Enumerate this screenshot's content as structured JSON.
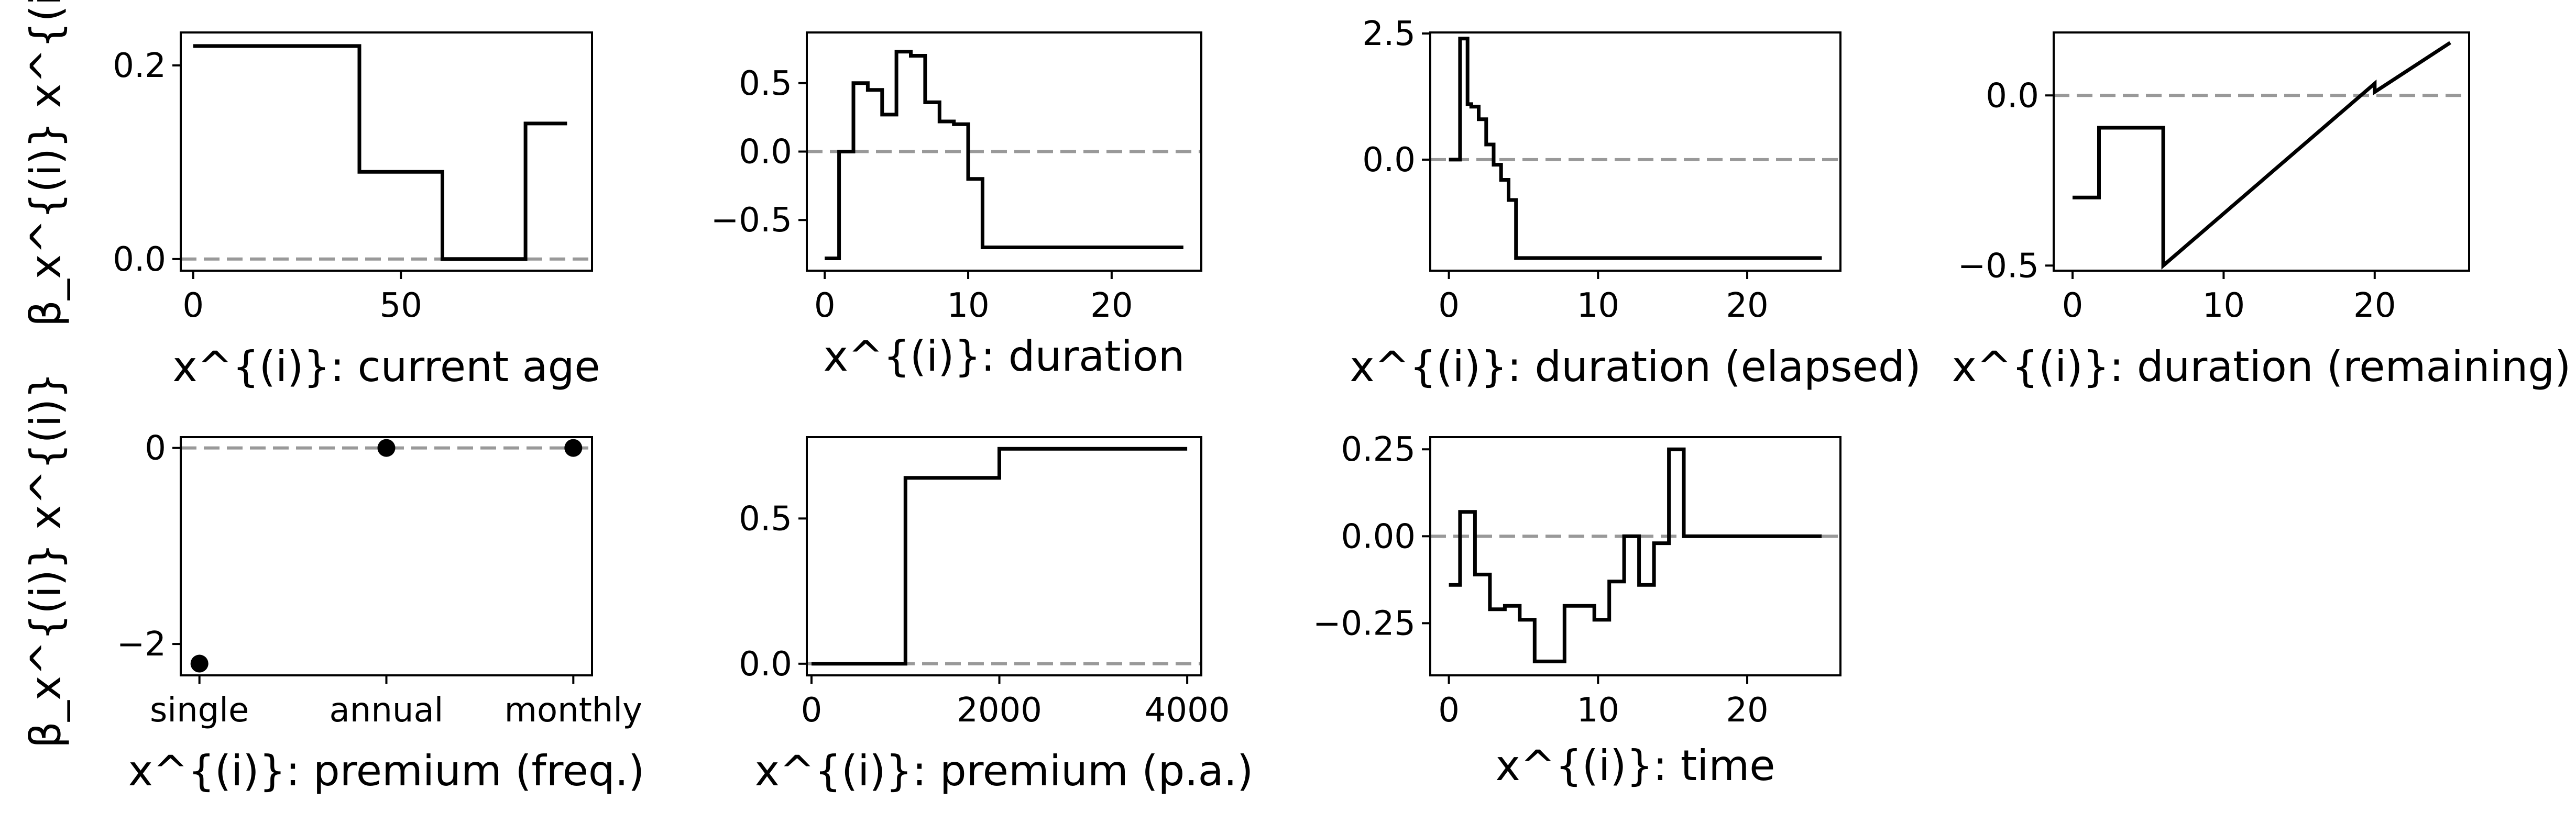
{
  "ylabel_text": "β_x^{(i)} x^{(i)}",
  "chart_data": [
    {
      "type": "line",
      "step": true,
      "xlabel": "x^{(i)}: current age",
      "ylabel": "β_x^{(i)} x^{(i)}",
      "xlim": [
        -3,
        96
      ],
      "ylim": [
        -0.012,
        0.234
      ],
      "xticks": [
        0,
        50
      ],
      "xtick_labels": [
        "0",
        "50"
      ],
      "yticks": [
        0.0,
        0.2
      ],
      "ytick_labels": [
        "0.0",
        "0.2"
      ],
      "reference_line": 0,
      "x": [
        0,
        40,
        40,
        60,
        60,
        80,
        80,
        90
      ],
      "y": [
        0.22,
        0.22,
        0.09,
        0.09,
        0.0,
        0.0,
        0.14,
        0.14
      ]
    },
    {
      "type": "line",
      "step": true,
      "xlabel": "x^{(i)}: duration",
      "ylabel": "",
      "xlim": [
        -1.25,
        26.25
      ],
      "ylim": [
        -0.87,
        0.87
      ],
      "xticks": [
        0,
        10,
        20
      ],
      "xtick_labels": [
        "0",
        "10",
        "20"
      ],
      "yticks": [
        -0.5,
        0.0,
        0.5
      ],
      "ytick_labels": [
        "−0.5",
        "0.0",
        "0.5"
      ],
      "reference_line": 0,
      "x": [
        0,
        1,
        1,
        2,
        2,
        3,
        3,
        4,
        4,
        5,
        5,
        6,
        6,
        7,
        7,
        8,
        8,
        9,
        9,
        10,
        10,
        11,
        11,
        25
      ],
      "y": [
        -0.78,
        -0.78,
        0.0,
        0.0,
        0.5,
        0.5,
        0.45,
        0.45,
        0.27,
        0.27,
        0.73,
        0.73,
        0.7,
        0.7,
        0.36,
        0.36,
        0.22,
        0.22,
        0.2,
        0.2,
        -0.2,
        -0.2,
        -0.7,
        -0.7
      ]
    },
    {
      "type": "line",
      "step": true,
      "xlabel": "x^{(i)}: duration (elapsed)",
      "ylabel": "",
      "xlim": [
        -1.25,
        26.25
      ],
      "ylim": [
        -2.2,
        2.52
      ],
      "xticks": [
        0,
        10,
        20
      ],
      "xtick_labels": [
        "0",
        "10",
        "20"
      ],
      "yticks": [
        0.0,
        2.5
      ],
      "ytick_labels": [
        "0.0",
        "2.5"
      ],
      "reference_line": 0,
      "x": [
        0,
        0.75,
        0.75,
        1.25,
        1.25,
        1.5,
        1.5,
        2.0,
        2.0,
        2.5,
        2.5,
        3.0,
        3.0,
        3.5,
        3.5,
        4.0,
        4.0,
        4.5,
        4.5,
        25
      ],
      "y": [
        0.0,
        0.0,
        2.4,
        2.4,
        1.1,
        1.1,
        1.05,
        1.05,
        0.8,
        0.8,
        0.3,
        0.3,
        -0.1,
        -0.1,
        -0.4,
        -0.4,
        -0.8,
        -0.8,
        -1.95,
        -1.95
      ]
    },
    {
      "type": "line",
      "step": false,
      "xlabel": "x^{(i)}: duration (remaining)",
      "ylabel": "",
      "xlim": [
        -1.25,
        26.25
      ],
      "ylim": [
        -0.515,
        0.185
      ],
      "xticks": [
        0,
        10,
        20
      ],
      "xtick_labels": [
        "0",
        "10",
        "20"
      ],
      "yticks": [
        -0.5,
        0.0
      ],
      "ytick_labels": [
        "−0.5",
        "0.0"
      ],
      "reference_line": 0,
      "x": [
        0,
        1.75,
        1.75,
        6,
        6,
        20,
        20,
        25
      ],
      "y": [
        -0.3,
        -0.3,
        -0.095,
        -0.095,
        -0.5,
        0.035,
        0.01,
        0.155
      ]
    },
    {
      "type": "scatter",
      "xlabel": "x^{(i)}: premium (freq.)",
      "ylabel": "β_x^{(i)} x^{(i)}",
      "xlim": [
        -0.1,
        2.1
      ],
      "ylim": [
        -2.32,
        0.11
      ],
      "categories": [
        "single",
        "annual",
        "monthly"
      ],
      "xticks": [
        0,
        1,
        2
      ],
      "xtick_labels": [
        "single",
        "annual",
        "monthly"
      ],
      "yticks": [
        -2,
        0
      ],
      "ytick_labels": [
        "−2",
        "0"
      ],
      "reference_line": 0,
      "x": [
        0,
        1,
        2
      ],
      "y": [
        -2.2,
        0.0,
        0.0
      ]
    },
    {
      "type": "line",
      "step": true,
      "xlabel": "x^{(i)}: premium (p.a.)",
      "ylabel": "",
      "xlim": [
        -50,
        4150
      ],
      "ylim": [
        -0.04,
        0.78
      ],
      "xticks": [
        0,
        2000,
        4000
      ],
      "xtick_labels": [
        "0",
        "2000",
        "4000"
      ],
      "yticks": [
        0.0,
        0.5
      ],
      "ytick_labels": [
        "0.0",
        "0.5"
      ],
      "reference_line": 0,
      "x": [
        0,
        1000,
        1000,
        2000,
        2000,
        4000
      ],
      "y": [
        0.0,
        0.0,
        0.64,
        0.64,
        0.74,
        0.74
      ]
    },
    {
      "type": "line",
      "step": true,
      "xlabel": "x^{(i)}: time",
      "ylabel": "",
      "xlim": [
        -1.25,
        26.25
      ],
      "ylim": [
        -0.4,
        0.285
      ],
      "xticks": [
        0,
        10,
        20
      ],
      "xtick_labels": [
        "0",
        "10",
        "20"
      ],
      "yticks": [
        -0.25,
        0.0,
        0.25
      ],
      "ytick_labels": [
        "−0.25",
        "0.00",
        "0.25"
      ],
      "reference_line": 0,
      "x": [
        0,
        0.75,
        0.75,
        1.75,
        1.75,
        2.75,
        2.75,
        3.75,
        3.75,
        4.75,
        4.75,
        5.75,
        5.75,
        7.75,
        7.75,
        9.75,
        9.75,
        10.75,
        10.75,
        11.75,
        11.75,
        12.75,
        12.75,
        13.75,
        13.75,
        14.75,
        14.75,
        15.75,
        15.75,
        25
      ],
      "y": [
        -0.14,
        -0.14,
        0.07,
        0.07,
        -0.11,
        -0.11,
        -0.21,
        -0.21,
        -0.2,
        -0.2,
        -0.24,
        -0.24,
        -0.36,
        -0.36,
        -0.2,
        -0.2,
        -0.24,
        -0.24,
        -0.13,
        -0.13,
        0.0,
        0.0,
        -0.14,
        -0.14,
        -0.02,
        -0.02,
        0.25,
        0.25,
        0.0,
        0.0
      ]
    }
  ]
}
